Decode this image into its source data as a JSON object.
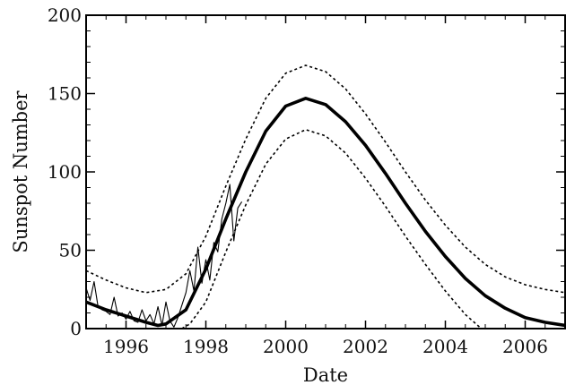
{
  "chart_data": {
    "type": "line",
    "title": "",
    "xlabel": "Date",
    "ylabel": "Sunspot Number",
    "xlim": [
      1995.0,
      2007.0
    ],
    "ylim": [
      0,
      200
    ],
    "grid": false,
    "x_ticks": [
      1996,
      1998,
      2000,
      2002,
      2004,
      2006
    ],
    "x_tick_labels": [
      "1996",
      "1998",
      "2000",
      "2002",
      "2004",
      "2006"
    ],
    "y_ticks": [
      0,
      50,
      100,
      150,
      200
    ],
    "y_tick_labels": [
      "0",
      "50",
      "100",
      "150",
      "200"
    ],
    "series": [
      {
        "style": "thick-solid",
        "x": [
          1995.0,
          1995.5,
          1996.0,
          1996.5,
          1996.8,
          1997.0,
          1997.5,
          1998.0,
          1998.5,
          1999.0,
          1999.5,
          2000.0,
          2000.5,
          2001.0,
          2001.5,
          2002.0,
          2002.5,
          2003.0,
          2003.5,
          2004.0,
          2004.5,
          2005.0,
          2005.5,
          2006.0,
          2006.5,
          2007.0
        ],
        "y": [
          17,
          12,
          8,
          4,
          2,
          3,
          12,
          38,
          70,
          100,
          126,
          142,
          147,
          143,
          132,
          117,
          99,
          80,
          62,
          46,
          32,
          21,
          13,
          7,
          4,
          2
        ]
      },
      {
        "style": "dotted-upper",
        "x": [
          1995.0,
          1995.5,
          1996.0,
          1996.5,
          1997.0,
          1997.5,
          1998.0,
          1998.5,
          1999.0,
          1999.5,
          2000.0,
          2000.5,
          2001.0,
          2001.5,
          2002.0,
          2002.5,
          2003.0,
          2003.5,
          2004.0,
          2004.5,
          2005.0,
          2005.5,
          2006.0,
          2006.5,
          2007.0
        ],
        "y": [
          37,
          31,
          26,
          23,
          25,
          35,
          59,
          91,
          121,
          147,
          163,
          168,
          164,
          153,
          137,
          119,
          100,
          82,
          66,
          52,
          41,
          33,
          28,
          25,
          23
        ]
      },
      {
        "style": "dotted-lower",
        "x": [
          1997.4,
          1997.6,
          1998.0,
          1998.5,
          1999.0,
          1999.5,
          2000.0,
          2000.5,
          2001.0,
          2001.5,
          2002.0,
          2002.5,
          2003.0,
          2003.5,
          2004.0,
          2004.5,
          2004.9
        ],
        "y": [
          0,
          3,
          17,
          49,
          79,
          105,
          121,
          127,
          123,
          112,
          96,
          78,
          59,
          41,
          24,
          9,
          0
        ]
      },
      {
        "style": "thin-observed",
        "x": [
          1995.0,
          1995.1,
          1995.2,
          1995.3,
          1995.4,
          1995.5,
          1995.6,
          1995.7,
          1995.8,
          1995.9,
          1996.0,
          1996.1,
          1996.2,
          1996.3,
          1996.4,
          1996.5,
          1996.6,
          1996.7,
          1996.8,
          1996.9,
          1997.0,
          1997.1,
          1997.2,
          1997.3,
          1997.4,
          1997.5,
          1997.6,
          1997.7,
          1997.8,
          1997.9,
          1998.0,
          1998.1,
          1998.2,
          1998.3,
          1998.4,
          1998.5,
          1998.6,
          1998.7,
          1998.8,
          1998.9
        ],
        "y": [
          26,
          18,
          30,
          14,
          12,
          11,
          9,
          20,
          8,
          10,
          6,
          11,
          5,
          4,
          12,
          5,
          9,
          3,
          14,
          2,
          17,
          5,
          1,
          7,
          15,
          23,
          37,
          24,
          52,
          29,
          44,
          31,
          55,
          49,
          70,
          80,
          92,
          56,
          77,
          81
        ]
      }
    ]
  }
}
